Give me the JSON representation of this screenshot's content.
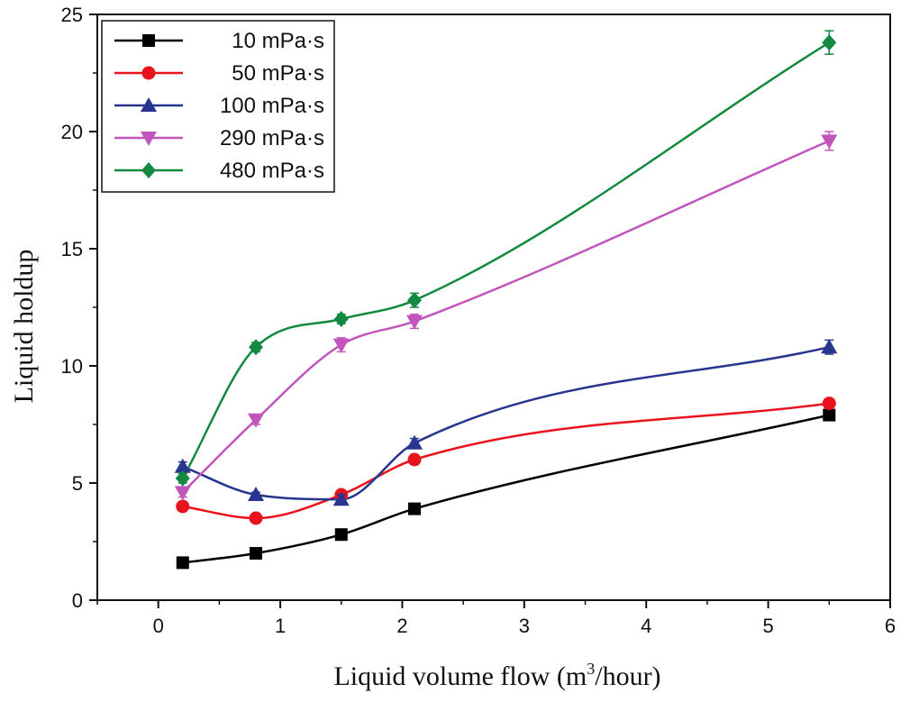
{
  "chart_data": {
    "type": "line",
    "title": "",
    "xlabel": {
      "prefix": "Liquid volume flow (m",
      "superscript": "3",
      "suffix": "/hour)"
    },
    "ylabel": "Liquid holdup",
    "xlim": [
      -0.5,
      6
    ],
    "ylim": [
      0,
      25
    ],
    "xticks": [
      0,
      1,
      2,
      3,
      4,
      5,
      6
    ],
    "yticks": [
      0,
      5,
      10,
      15,
      20,
      25
    ],
    "grid": false,
    "legend_position": "top-left",
    "x": [
      0.2,
      0.8,
      1.5,
      2.1,
      5.5
    ],
    "series": [
      {
        "name": "10 mPa·s",
        "color": "#000000",
        "marker": "square",
        "values": [
          1.6,
          2.0,
          2.8,
          3.9,
          7.9
        ],
        "errors": [
          0,
          0,
          0,
          0.1,
          0.2
        ]
      },
      {
        "name": "50 mPa·s",
        "color": "#e8131c",
        "marker": "circle",
        "values": [
          4.0,
          3.5,
          4.5,
          6.0,
          8.4
        ],
        "errors": [
          0.1,
          0.1,
          0.1,
          0.2,
          0.1
        ]
      },
      {
        "name": "100 mPa·s",
        "color": "#27358f",
        "marker": "triangle-up",
        "values": [
          5.7,
          4.5,
          4.3,
          6.7,
          10.8
        ],
        "errors": [
          0.2,
          0.1,
          0.2,
          0.2,
          0.3
        ]
      },
      {
        "name": "290 mPa·s",
        "color": "#c155bc",
        "marker": "triangle-down",
        "values": [
          4.6,
          7.7,
          10.9,
          11.9,
          19.6
        ],
        "errors": [
          0.2,
          0.2,
          0.3,
          0.3,
          0.4
        ]
      },
      {
        "name": "480 mPa·s",
        "color": "#138a3f",
        "marker": "diamond",
        "values": [
          5.2,
          10.8,
          12.0,
          12.8,
          23.8
        ],
        "errors": [
          0.2,
          0.2,
          0.2,
          0.3,
          0.5
        ]
      }
    ]
  }
}
